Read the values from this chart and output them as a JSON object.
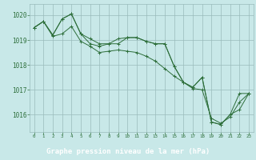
{
  "background_color": "#c8e8e8",
  "grid_color": "#99bbbb",
  "line_color": "#2d6e3a",
  "label_bg": "#2d6e3a",
  "label_fg": "#ffffff",
  "xlabel": "Graphe pression niveau de la mer (hPa)",
  "ylim": [
    1015.3,
    1020.45
  ],
  "xlim": [
    -0.5,
    23.5
  ],
  "yticks": [
    1016,
    1017,
    1018,
    1019,
    1020
  ],
  "xticks": [
    0,
    1,
    2,
    3,
    4,
    5,
    6,
    7,
    8,
    9,
    10,
    11,
    12,
    13,
    14,
    15,
    16,
    17,
    18,
    19,
    20,
    21,
    22,
    23
  ],
  "series1": [
    1019.5,
    1019.75,
    1019.2,
    1019.85,
    1020.05,
    1019.25,
    1019.05,
    1018.85,
    1018.85,
    1019.05,
    1019.1,
    1019.1,
    1018.95,
    1018.85,
    1018.85,
    1017.95,
    1017.3,
    1017.1,
    1017.5,
    1015.7,
    1015.6,
    1016.0,
    1016.85,
    1016.85
  ],
  "series2": [
    1019.5,
    1019.75,
    1019.2,
    1019.85,
    1020.05,
    1019.25,
    1018.85,
    1018.75,
    1018.85,
    1018.85,
    1019.1,
    1019.1,
    1018.95,
    1018.85,
    1018.85,
    1017.95,
    1017.3,
    1017.1,
    1017.5,
    1015.7,
    1015.6,
    1016.0,
    1016.2,
    1016.85
  ],
  "series3": [
    1019.5,
    1019.75,
    1019.15,
    1019.25,
    1019.55,
    1018.95,
    1018.75,
    1018.5,
    1018.55,
    1018.6,
    1018.55,
    1018.5,
    1018.35,
    1018.15,
    1017.85,
    1017.55,
    1017.3,
    1017.05,
    1017.0,
    1015.85,
    1015.65,
    1015.9,
    1016.5,
    1016.85
  ]
}
